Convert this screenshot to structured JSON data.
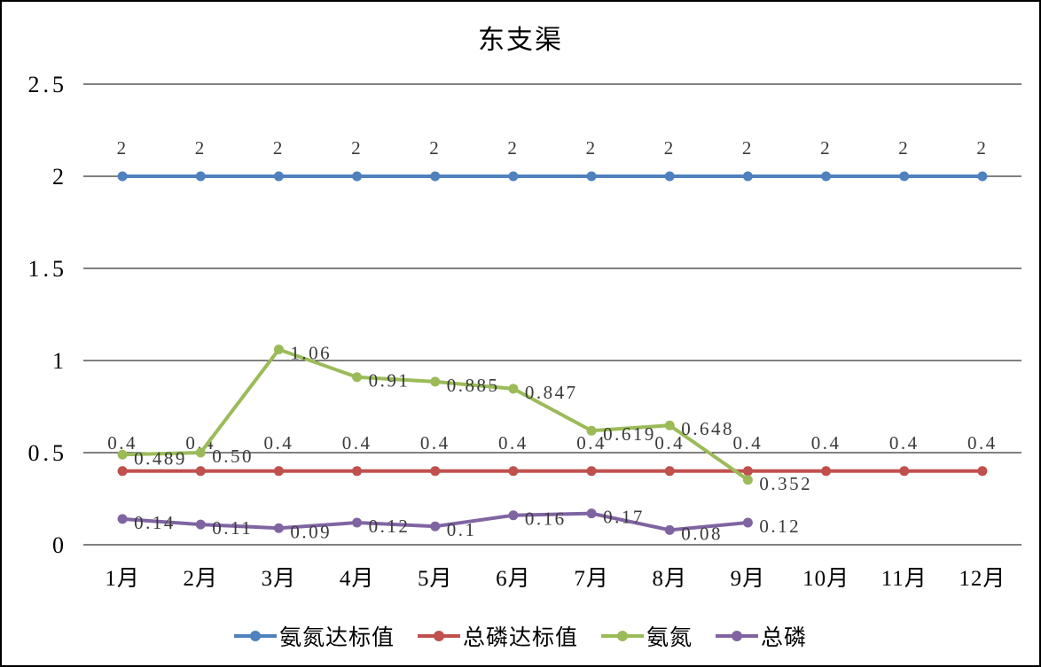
{
  "title": "东支渠",
  "chart_data": {
    "type": "line",
    "title": "东支渠",
    "xlabel": "",
    "ylabel": "",
    "categories": [
      "1月",
      "2月",
      "3月",
      "4月",
      "5月",
      "6月",
      "7月",
      "8月",
      "9月",
      "10月",
      "11月",
      "12月"
    ],
    "y_ticks": {
      "values": [
        0,
        0.5,
        1,
        1.5,
        2,
        2.5
      ],
      "labels": [
        "0",
        "0.5",
        "1",
        "1.5",
        "2",
        "2.5"
      ]
    },
    "ylim": [
      0,
      2.5
    ],
    "grid": true,
    "legend_position": "bottom",
    "series": [
      {
        "key": "nh3n-standard",
        "name": "氨氮达标值",
        "color": "#4f81bd",
        "label_position": "above",
        "values": [
          2,
          2,
          2,
          2,
          2,
          2,
          2,
          2,
          2,
          2,
          2,
          2
        ],
        "labels": [
          "2",
          "2",
          "2",
          "2",
          "2",
          "2",
          "2",
          "2",
          "2",
          "2",
          "2",
          "2"
        ]
      },
      {
        "key": "tp-standard",
        "name": "总磷达标值",
        "color": "#c0504d",
        "label_position": "above",
        "values": [
          0.4,
          0.4,
          0.4,
          0.4,
          0.4,
          0.4,
          0.4,
          0.4,
          0.4,
          0.4,
          0.4,
          0.4
        ],
        "labels": [
          "0.4",
          "0.4",
          "0.4",
          "0.4",
          "0.4",
          "0.4",
          "0.4",
          "0.4",
          "0.4",
          "0.4",
          "0.4",
          "0.4"
        ]
      },
      {
        "key": "nh3n",
        "name": "氨氮",
        "color": "#9bbb59",
        "label_position": "right",
        "values": [
          0.489,
          0.5,
          1.06,
          0.91,
          0.885,
          0.847,
          0.619,
          0.648,
          0.352
        ],
        "labels": [
          "0.489",
          "0.50",
          "1.06",
          "0.91",
          "0.885",
          "0.847",
          "0.619",
          "0.648",
          "0.352"
        ]
      },
      {
        "key": "tp",
        "name": "总磷",
        "color": "#8064a2",
        "label_position": "right",
        "values": [
          0.14,
          0.11,
          0.09,
          0.12,
          0.1,
          0.16,
          0.17,
          0.08,
          0.12
        ],
        "labels": [
          "0.14",
          "0.11",
          "0.09",
          "0.12",
          "0.1",
          "0.16",
          "0.17",
          "0.08",
          "0.12"
        ]
      }
    ],
    "axis_color": "#000000",
    "data_label_color": "#3a3a3a"
  }
}
